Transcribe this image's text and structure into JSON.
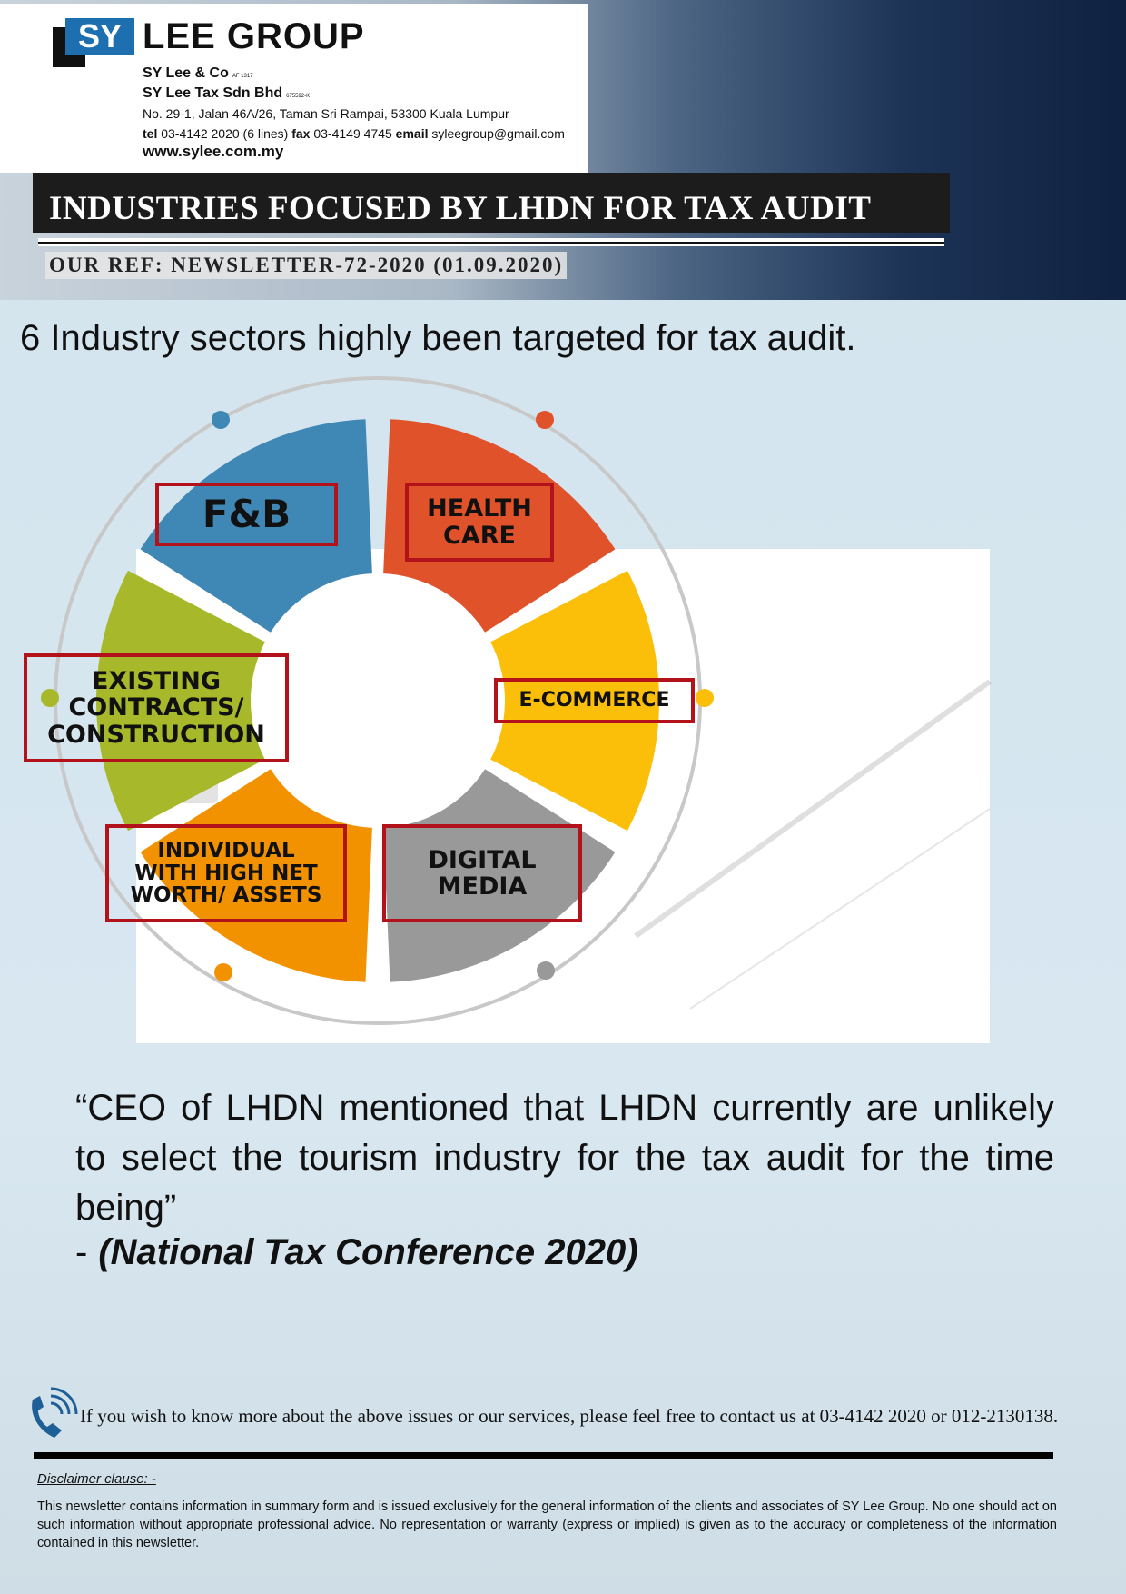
{
  "header": {
    "logo": "SY",
    "company": "LEE GROUP",
    "firms": [
      {
        "name": "SY Lee & Co",
        "reg": "AF 1317"
      },
      {
        "name": "SY Lee Tax Sdn Bhd",
        "reg": "675592-K"
      }
    ],
    "address": "No. 29-1, Jalan 46A/26, Taman Sri Rampai, 53300 Kuala Lumpur",
    "contact": {
      "tel_label": "tel",
      "tel": "03-4142 2020 (6 lines)",
      "fax_label": "fax",
      "fax": "03-4149 4745",
      "email_label": "email",
      "email": "syleegroup@gmail.com"
    },
    "website": "www.sylee.com.my"
  },
  "banner": {
    "title": "INDUSTRIES FOCUSED BY LHDN FOR TAX AUDIT",
    "reference": "OUR REF: NEWSLETTER-72-2020 (01.09.2020)"
  },
  "body": {
    "heading": "6 Industry sectors highly been targeted for tax audit.",
    "sectors": [
      {
        "lines": [
          "F&B"
        ]
      },
      {
        "lines": [
          "HEALTH",
          "CARE"
        ]
      },
      {
        "lines": [
          "E-COMMERCE"
        ]
      },
      {
        "lines": [
          "DIGITAL",
          "MEDIA"
        ]
      },
      {
        "lines": [
          "INDIVIDUAL",
          "WITH HIGH NET",
          "WORTH/ ASSETS"
        ]
      },
      {
        "lines": [
          "EXISTING",
          "CONTRACTS/",
          "CONSTRUCTION"
        ]
      }
    ]
  },
  "quote": {
    "text": "“CEO of LHDN mentioned that LHDN currently are unlikely to select the tourism industry for the tax audit for the time being”",
    "source_prefix": "-",
    "source": "(National Tax Conference 2020)"
  },
  "footer": {
    "contact": "If you wish to know more about the above issues or our services, please feel free to contact us at 03-4142 2020 or 012-2130138.",
    "disclaimer_title": "Disclaimer clause: -",
    "disclaimer": "This newsletter contains information in summary form and is issued exclusively for the general information of the clients and associates of SY Lee Group. No one should act on such information without appropriate professional advice. No representation or warranty (express or implied) is given as to the accuracy or completeness of the information contained in this newsletter."
  }
}
